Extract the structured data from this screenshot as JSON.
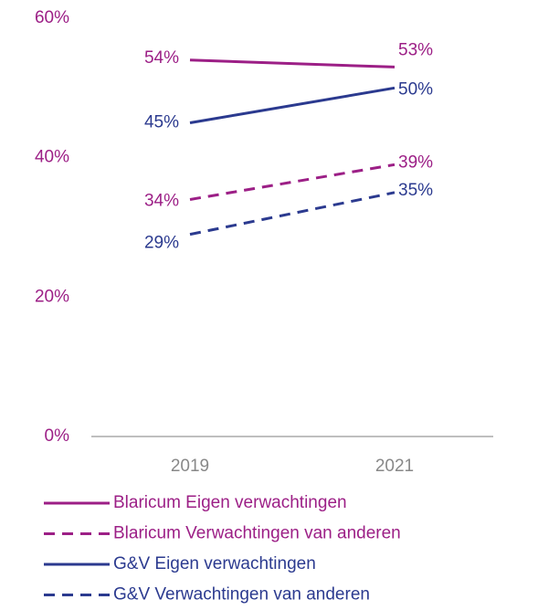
{
  "chart_data": {
    "type": "line",
    "categories": [
      "2019",
      "2021"
    ],
    "series": [
      {
        "name": "Blaricum Eigen verwachtingen",
        "color": "#9c1f86",
        "dashed": false,
        "values": [
          54,
          53
        ],
        "value_labels": [
          "54%",
          "53%"
        ]
      },
      {
        "name": "Blaricum Verwachtingen van anderen",
        "color": "#9c1f86",
        "dashed": true,
        "values": [
          34,
          39
        ],
        "value_labels": [
          "34%",
          "39%"
        ]
      },
      {
        "name": "G&V Eigen verwachtingen",
        "color": "#2b3a8f",
        "dashed": false,
        "values": [
          45,
          50
        ],
        "value_labels": [
          "45%",
          "50%"
        ]
      },
      {
        "name": "G&V Verwachtingen van anderen",
        "color": "#2b3a8f",
        "dashed": true,
        "values": [
          29,
          35
        ],
        "value_labels": [
          "29%",
          "35%"
        ]
      }
    ],
    "ylim": [
      0,
      60
    ],
    "yticks": [
      {
        "value": 0,
        "label": "0%"
      },
      {
        "value": 20,
        "label": "20%"
      },
      {
        "value": 40,
        "label": "40%"
      },
      {
        "value": 60,
        "label": "60%"
      }
    ],
    "tick_label_color": "#9c1f86",
    "grid": false
  }
}
